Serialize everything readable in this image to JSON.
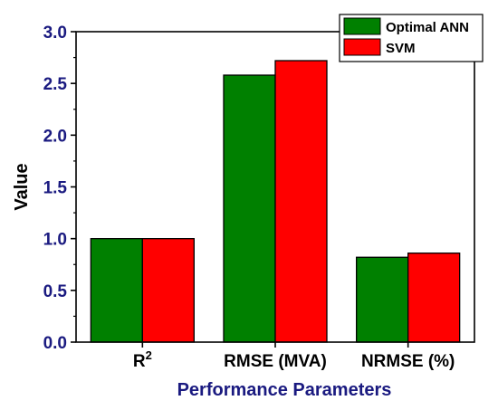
{
  "chart_data": {
    "type": "bar",
    "categories": [
      "R",
      "RMSE (MVA)",
      "NRMSE (%)"
    ],
    "category_superscripts": [
      "2",
      "",
      ""
    ],
    "series": [
      {
        "name": "Optimal ANN",
        "color": "#008000",
        "values": [
          1.0,
          2.58,
          0.82
        ]
      },
      {
        "name": "SVM",
        "color": "#ff0000",
        "values": [
          1.0,
          2.72,
          0.86
        ]
      }
    ],
    "xlabel": "Performance Parameters",
    "ylabel": "Value",
    "ylim": [
      0,
      3.0
    ],
    "yticks": [
      "0.0",
      "0.5",
      "1.0",
      "1.5",
      "2.0",
      "2.5",
      "3.0"
    ],
    "legend_position": "top-right",
    "grid": false,
    "colors": {
      "axis_text": "#1a1a80",
      "category_text": "#000000",
      "ylabel_text": "#000000"
    }
  }
}
